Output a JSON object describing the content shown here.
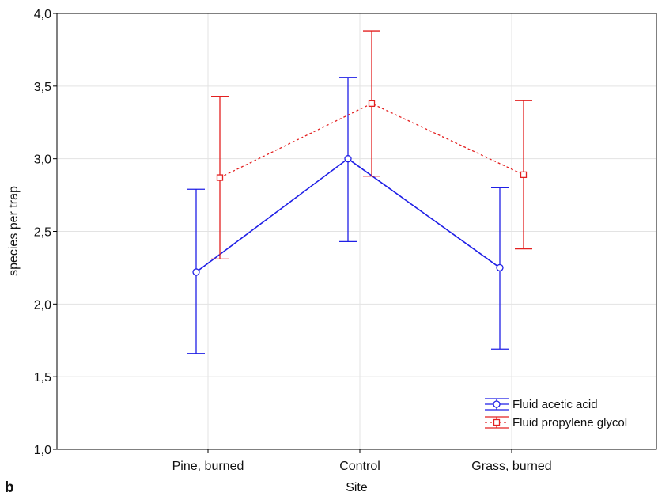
{
  "panel_label": "b",
  "colors": {
    "acetic": "#1f1fe6",
    "propylene": "#e32020",
    "grid": "#e3e3e3",
    "axis": "#000000"
  },
  "chart_data": {
    "type": "line",
    "xlabel": "Site",
    "ylabel": "species per trap",
    "categories": [
      "Pine, burned",
      "Control",
      "Grass, burned"
    ],
    "ylim": [
      1.0,
      4.0
    ],
    "yticks": [
      "1,0",
      "1,5",
      "2,0",
      "2,5",
      "3,0",
      "3,5",
      "4,0"
    ],
    "ytick_values": [
      1.0,
      1.5,
      2.0,
      2.5,
      3.0,
      3.5,
      4.0
    ],
    "grid": true,
    "legend_position": "bottom-right",
    "error_bars": true,
    "series": [
      {
        "name": "Fluid acetic acid",
        "marker": "circle",
        "line_style": "solid",
        "values": [
          2.22,
          3.0,
          2.25
        ],
        "lower": [
          1.66,
          2.43,
          1.69
        ],
        "upper": [
          2.79,
          3.56,
          2.8
        ]
      },
      {
        "name": "Fluid propylene glycol",
        "marker": "square",
        "line_style": "dashed",
        "values": [
          2.87,
          3.38,
          2.89
        ],
        "lower": [
          2.31,
          2.88,
          2.38
        ],
        "upper": [
          3.43,
          3.88,
          3.4
        ]
      }
    ]
  }
}
